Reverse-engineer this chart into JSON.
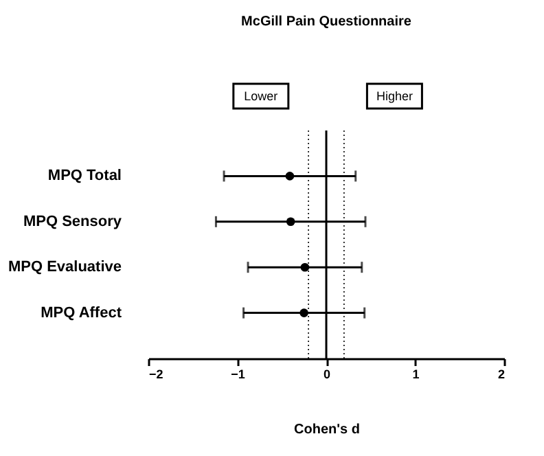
{
  "chart_data": {
    "type": "scatter",
    "orientation": "horizontal",
    "title": "McGill Pain Questionnaire",
    "xlabel": "Cohen's d",
    "categories": [
      "MPQ Total",
      "MPQ Sensory",
      "MPQ Evaluative",
      "MPQ Affect"
    ],
    "values": [
      -0.41,
      -0.4,
      -0.24,
      -0.25
    ],
    "errors": [
      [
        -1.15,
        0.33
      ],
      [
        -1.24,
        0.44
      ],
      [
        -0.88,
        0.4
      ],
      [
        -0.93,
        0.43
      ]
    ],
    "color": "#000000",
    "marker": "circle",
    "xlim": [
      -2,
      2
    ],
    "xticks": [
      -2,
      -1,
      0,
      1,
      2
    ],
    "ref_lines": [
      {
        "axis": "x",
        "value": 0,
        "line_style": "solid"
      },
      {
        "axis": "x",
        "value": -0.2,
        "line_style": "dotted"
      },
      {
        "axis": "x",
        "value": 0.2,
        "line_style": "dotted"
      }
    ],
    "annotations": [
      "Lower",
      "Higher"
    ],
    "grid": false
  }
}
